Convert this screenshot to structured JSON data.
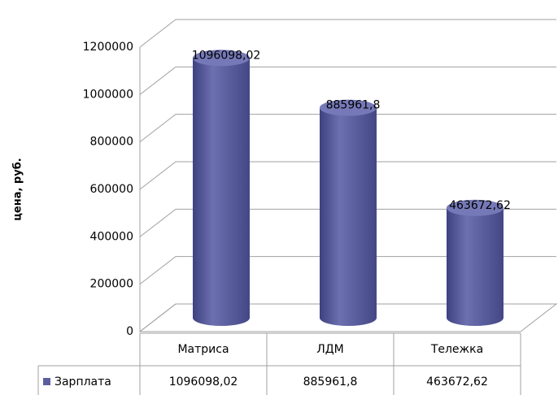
{
  "chart_data": {
    "type": "bar3d",
    "y_label": "цена, руб.",
    "categories": [
      "Матриса",
      "ЛДМ",
      "Тележка"
    ],
    "series": [
      {
        "name": "Зарплата",
        "color": "#5c5f9e",
        "values": [
          1096098.02,
          885961.8,
          463672.62
        ],
        "value_labels": [
          "1096098,02",
          "885961,8",
          "463672,62"
        ]
      }
    ],
    "ylim": [
      0,
      1200000
    ],
    "yticks": [
      0,
      200000,
      400000,
      600000,
      800000,
      1000000,
      1200000
    ],
    "grid": true,
    "data_table": true
  }
}
